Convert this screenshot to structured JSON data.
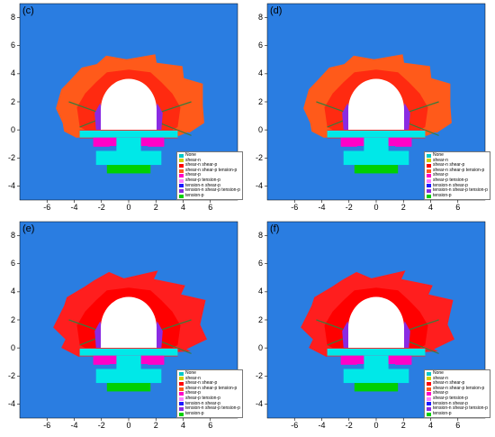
{
  "panels": [
    {
      "label": "(c)"
    },
    {
      "label": "(d)"
    },
    {
      "label": "(e)"
    },
    {
      "label": "(f)"
    }
  ],
  "axes": {
    "x_ticks": [
      "-6",
      "-4",
      "-2",
      "0",
      "2",
      "4",
      "6"
    ],
    "y_ticks": [
      "8",
      "6",
      "4",
      "2",
      "0",
      "-2",
      "-4"
    ]
  },
  "legend": [
    {
      "label": "None",
      "color": "#00c8c8"
    },
    {
      "label": "shear-n",
      "color": "#d0d000"
    },
    {
      "label": "shear-n shear-p",
      "color": "#ff0000"
    },
    {
      "label": "shear-n shear-p tension-p",
      "color": "#ff5a1a"
    },
    {
      "label": "shear-p",
      "color": "#ff00c8"
    },
    {
      "label": "shear-p tension-p",
      "color": "#ff80ff"
    },
    {
      "label": "tension-n shear-p",
      "color": "#1a1aff"
    },
    {
      "label": "tension-n shear-p tension-p",
      "color": "#8a2be2"
    },
    {
      "label": "tension-p",
      "color": "#00d000"
    }
  ],
  "colors": {
    "background": "#2a7de1",
    "outer_zone_c_d": "#ff5a1a",
    "outer_zone_e_f": "#ff1e1e",
    "inner_zone": "#ff0000",
    "none": "#00e8e8",
    "shear_p": "#ff00c8",
    "tension_p": "#00d000",
    "tension_n_shear_p": "#8a2be2",
    "bolt": "#3a7a3a"
  }
}
